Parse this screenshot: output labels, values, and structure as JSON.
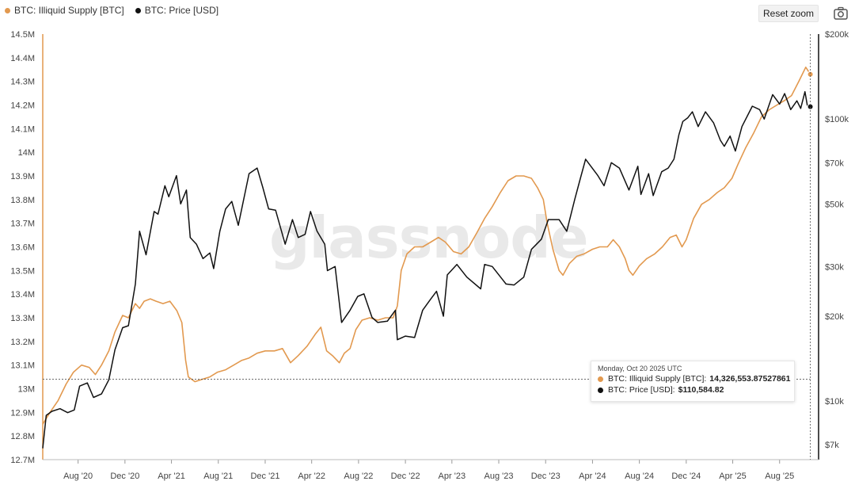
{
  "legend": {
    "items": [
      {
        "label": "BTC: Illiquid Supply [BTC]",
        "color": "#e2994f"
      },
      {
        "label": "BTC: Price [USD]",
        "color": "#111111"
      }
    ]
  },
  "toolbar": {
    "reset_zoom": "Reset zoom",
    "camera_icon": "camera-icon"
  },
  "watermark": "glassnode",
  "tooltip": {
    "date": "Monday, Oct 20 2025 UTC",
    "supply_label": "BTC: Illiquid Supply [BTC]:",
    "supply_value": "14,326,553.87527861",
    "price_label": "BTC: Price [USD]:",
    "price_value": "$110,584.82"
  },
  "chart_data": {
    "type": "line",
    "x_ticks": [
      "Aug '20",
      "Dec '20",
      "Apr '21",
      "Aug '21",
      "Dec '21",
      "Apr '22",
      "Aug '22",
      "Dec '22",
      "Apr '23",
      "Aug '23",
      "Dec '23",
      "Apr '24",
      "Aug '24",
      "Dec '24",
      "Apr '25",
      "Aug '25"
    ],
    "x_range": [
      "2020-05-01",
      "2025-10-25"
    ],
    "y_left": {
      "min": 12.7,
      "max": 14.5,
      "ticks": [
        "12.7M",
        "12.8M",
        "12.9M",
        "13M",
        "13.1M",
        "13.2M",
        "13.3M",
        "13.4M",
        "13.5M",
        "13.6M",
        "13.7M",
        "13.8M",
        "13.9M",
        "14M",
        "14.1M",
        "14.2M",
        "14.3M",
        "14.4M",
        "14.5M"
      ],
      "unit": "M BTC"
    },
    "y_right": {
      "scale": "log",
      "min": 6200,
      "max": 200000,
      "ticks": [
        {
          "label": "$200k",
          "value": 200000
        },
        {
          "label": "$100k",
          "value": 100000
        },
        {
          "label": "$70k",
          "value": 70000
        },
        {
          "label": "$50k",
          "value": 50000
        },
        {
          "label": "$30k",
          "value": 30000
        },
        {
          "label": "$20k",
          "value": 20000
        },
        {
          "label": "$10k",
          "value": 10000
        },
        {
          "label": "$7k",
          "value": 7000
        }
      ]
    },
    "crosshair": {
      "date": "2025-10-20",
      "supply": 13.04
    },
    "series": [
      {
        "name": "BTC: Illiquid Supply [BTC]",
        "axis": "left",
        "color": "#e2994f",
        "points": [
          [
            "2020-05-01",
            12.85
          ],
          [
            "2020-05-20",
            12.9
          ],
          [
            "2020-06-10",
            12.95
          ],
          [
            "2020-07-01",
            13.02
          ],
          [
            "2020-07-20",
            13.07
          ],
          [
            "2020-08-10",
            13.1
          ],
          [
            "2020-08-30",
            13.09
          ],
          [
            "2020-09-15",
            13.06
          ],
          [
            "2020-10-01",
            13.1
          ],
          [
            "2020-10-20",
            13.16
          ],
          [
            "2020-11-05",
            13.24
          ],
          [
            "2020-11-25",
            13.31
          ],
          [
            "2020-12-10",
            13.3
          ],
          [
            "2020-12-28",
            13.36
          ],
          [
            "2021-01-08",
            13.34
          ],
          [
            "2021-01-20",
            13.37
          ],
          [
            "2021-02-05",
            13.38
          ],
          [
            "2021-02-20",
            13.37
          ],
          [
            "2021-03-10",
            13.36
          ],
          [
            "2021-03-28",
            13.37
          ],
          [
            "2021-04-15",
            13.33
          ],
          [
            "2021-04-28",
            13.28
          ],
          [
            "2021-05-08",
            13.12
          ],
          [
            "2021-05-15",
            13.05
          ],
          [
            "2021-06-01",
            13.03
          ],
          [
            "2021-06-20",
            13.04
          ],
          [
            "2021-07-10",
            13.05
          ],
          [
            "2021-07-30",
            13.07
          ],
          [
            "2021-08-20",
            13.08
          ],
          [
            "2021-09-10",
            13.1
          ],
          [
            "2021-10-01",
            13.12
          ],
          [
            "2021-10-20",
            13.13
          ],
          [
            "2021-11-10",
            13.15
          ],
          [
            "2021-12-01",
            13.16
          ],
          [
            "2021-12-25",
            13.16
          ],
          [
            "2022-01-15",
            13.17
          ],
          [
            "2022-02-05",
            13.11
          ],
          [
            "2022-02-25",
            13.14
          ],
          [
            "2022-03-20",
            13.18
          ],
          [
            "2022-04-10",
            13.23
          ],
          [
            "2022-04-25",
            13.26
          ],
          [
            "2022-05-10",
            13.16
          ],
          [
            "2022-05-25",
            13.14
          ],
          [
            "2022-06-12",
            13.11
          ],
          [
            "2022-06-25",
            13.15
          ],
          [
            "2022-07-10",
            13.17
          ],
          [
            "2022-07-25",
            13.25
          ],
          [
            "2022-08-10",
            13.29
          ],
          [
            "2022-08-30",
            13.3
          ],
          [
            "2022-09-20",
            13.29
          ],
          [
            "2022-10-10",
            13.3
          ],
          [
            "2022-10-30",
            13.3
          ],
          [
            "2022-11-10",
            13.35
          ],
          [
            "2022-11-20",
            13.5
          ],
          [
            "2022-12-05",
            13.57
          ],
          [
            "2022-12-25",
            13.6
          ],
          [
            "2023-01-15",
            13.6
          ],
          [
            "2023-02-05",
            13.62
          ],
          [
            "2023-02-25",
            13.64
          ],
          [
            "2023-03-15",
            13.62
          ],
          [
            "2023-04-05",
            13.58
          ],
          [
            "2023-04-25",
            13.57
          ],
          [
            "2023-05-15",
            13.6
          ],
          [
            "2023-06-05",
            13.66
          ],
          [
            "2023-06-25",
            13.72
          ],
          [
            "2023-07-15",
            13.77
          ],
          [
            "2023-08-05",
            13.83
          ],
          [
            "2023-08-25",
            13.88
          ],
          [
            "2023-09-15",
            13.9
          ],
          [
            "2023-10-05",
            13.9
          ],
          [
            "2023-10-25",
            13.89
          ],
          [
            "2023-11-10",
            13.85
          ],
          [
            "2023-11-25",
            13.8
          ],
          [
            "2023-12-05",
            13.7
          ],
          [
            "2023-12-20",
            13.59
          ],
          [
            "2024-01-05",
            13.5
          ],
          [
            "2024-01-15",
            13.48
          ],
          [
            "2024-02-01",
            13.53
          ],
          [
            "2024-02-20",
            13.56
          ],
          [
            "2024-03-10",
            13.57
          ],
          [
            "2024-04-01",
            13.59
          ],
          [
            "2024-04-20",
            13.6
          ],
          [
            "2024-05-10",
            13.6
          ],
          [
            "2024-05-25",
            13.63
          ],
          [
            "2024-06-10",
            13.6
          ],
          [
            "2024-06-25",
            13.55
          ],
          [
            "2024-07-05",
            13.5
          ],
          [
            "2024-07-15",
            13.48
          ],
          [
            "2024-08-01",
            13.52
          ],
          [
            "2024-08-20",
            13.55
          ],
          [
            "2024-09-10",
            13.57
          ],
          [
            "2024-09-30",
            13.6
          ],
          [
            "2024-10-20",
            13.64
          ],
          [
            "2024-11-05",
            13.65
          ],
          [
            "2024-11-20",
            13.6
          ],
          [
            "2024-12-01",
            13.63
          ],
          [
            "2024-12-20",
            13.72
          ],
          [
            "2025-01-10",
            13.78
          ],
          [
            "2025-01-30",
            13.8
          ],
          [
            "2025-02-20",
            13.83
          ],
          [
            "2025-03-10",
            13.85
          ],
          [
            "2025-03-30",
            13.89
          ],
          [
            "2025-04-15",
            13.95
          ],
          [
            "2025-05-05",
            14.02
          ],
          [
            "2025-05-25",
            14.08
          ],
          [
            "2025-06-15",
            14.15
          ],
          [
            "2025-07-05",
            14.18
          ],
          [
            "2025-07-25",
            14.2
          ],
          [
            "2025-08-15",
            14.22
          ],
          [
            "2025-09-01",
            14.24
          ],
          [
            "2025-09-20",
            14.3
          ],
          [
            "2025-10-08",
            14.36
          ],
          [
            "2025-10-20",
            14.33
          ]
        ]
      },
      {
        "name": "BTC: Price [USD]",
        "axis": "right",
        "color": "#111111",
        "points": [
          [
            "2020-05-01",
            6800
          ],
          [
            "2020-05-10",
            8900
          ],
          [
            "2020-05-25",
            9200
          ],
          [
            "2020-06-15",
            9400
          ],
          [
            "2020-07-05",
            9100
          ],
          [
            "2020-07-22",
            9300
          ],
          [
            "2020-08-05",
            11300
          ],
          [
            "2020-08-25",
            11600
          ],
          [
            "2020-09-10",
            10300
          ],
          [
            "2020-10-01",
            10600
          ],
          [
            "2020-10-20",
            11900
          ],
          [
            "2020-11-05",
            15200
          ],
          [
            "2020-11-25",
            18200
          ],
          [
            "2020-12-10",
            18500
          ],
          [
            "2020-12-28",
            26000
          ],
          [
            "2021-01-08",
            40000
          ],
          [
            "2021-01-25",
            33000
          ],
          [
            "2021-02-15",
            47000
          ],
          [
            "2021-02-25",
            46000
          ],
          [
            "2021-03-15",
            58000
          ],
          [
            "2021-03-25",
            53000
          ],
          [
            "2021-04-14",
            63000
          ],
          [
            "2021-04-25",
            50000
          ],
          [
            "2021-05-10",
            56000
          ],
          [
            "2021-05-20",
            38000
          ],
          [
            "2021-06-05",
            36000
          ],
          [
            "2021-06-22",
            32000
          ],
          [
            "2021-07-10",
            33500
          ],
          [
            "2021-07-20",
            29500
          ],
          [
            "2021-08-05",
            40000
          ],
          [
            "2021-08-20",
            48000
          ],
          [
            "2021-09-05",
            51000
          ],
          [
            "2021-09-22",
            42000
          ],
          [
            "2021-10-10",
            55000
          ],
          [
            "2021-10-20",
            64000
          ],
          [
            "2021-11-10",
            67000
          ],
          [
            "2021-11-25",
            57000
          ],
          [
            "2021-12-10",
            48000
          ],
          [
            "2021-12-28",
            47500
          ],
          [
            "2022-01-22",
            36000
          ],
          [
            "2022-02-10",
            44000
          ],
          [
            "2022-02-25",
            38000
          ],
          [
            "2022-03-15",
            39000
          ],
          [
            "2022-03-29",
            47000
          ],
          [
            "2022-04-15",
            40000
          ],
          [
            "2022-05-05",
            36000
          ],
          [
            "2022-05-12",
            29000
          ],
          [
            "2022-06-01",
            30000
          ],
          [
            "2022-06-18",
            19000
          ],
          [
            "2022-07-10",
            21000
          ],
          [
            "2022-07-30",
            23500
          ],
          [
            "2022-08-15",
            24000
          ],
          [
            "2022-09-05",
            19800
          ],
          [
            "2022-09-20",
            19000
          ],
          [
            "2022-10-15",
            19200
          ],
          [
            "2022-11-05",
            21000
          ],
          [
            "2022-11-10",
            16500
          ],
          [
            "2022-12-01",
            17000
          ],
          [
            "2022-12-25",
            16800
          ],
          [
            "2023-01-15",
            21000
          ],
          [
            "2023-02-05",
            23000
          ],
          [
            "2023-02-20",
            24500
          ],
          [
            "2023-03-10",
            20000
          ],
          [
            "2023-03-20",
            28000
          ],
          [
            "2023-04-14",
            30500
          ],
          [
            "2023-05-10",
            27500
          ],
          [
            "2023-06-15",
            25000
          ],
          [
            "2023-06-25",
            30500
          ],
          [
            "2023-07-15",
            30000
          ],
          [
            "2023-08-20",
            26000
          ],
          [
            "2023-09-10",
            25800
          ],
          [
            "2023-10-05",
            27500
          ],
          [
            "2023-10-25",
            34500
          ],
          [
            "2023-11-20",
            37500
          ],
          [
            "2023-12-08",
            44000
          ],
          [
            "2024-01-05",
            44000
          ],
          [
            "2024-01-25",
            40000
          ],
          [
            "2024-02-15",
            52000
          ],
          [
            "2024-03-01",
            62000
          ],
          [
            "2024-03-14",
            72000
          ],
          [
            "2024-04-15",
            63000
          ],
          [
            "2024-05-01",
            58000
          ],
          [
            "2024-05-20",
            70000
          ],
          [
            "2024-06-10",
            67000
          ],
          [
            "2024-07-05",
            56000
          ],
          [
            "2024-07-28",
            68000
          ],
          [
            "2024-08-05",
            54000
          ],
          [
            "2024-08-25",
            64000
          ],
          [
            "2024-09-06",
            53500
          ],
          [
            "2024-09-28",
            65000
          ],
          [
            "2024-10-15",
            67000
          ],
          [
            "2024-10-30",
            72000
          ],
          [
            "2024-11-12",
            88000
          ],
          [
            "2024-11-22",
            98000
          ],
          [
            "2024-12-05",
            101000
          ],
          [
            "2024-12-17",
            106000
          ],
          [
            "2025-01-01",
            94000
          ],
          [
            "2025-01-20",
            106000
          ],
          [
            "2025-02-10",
            97000
          ],
          [
            "2025-02-28",
            84000
          ],
          [
            "2025-03-10",
            80000
          ],
          [
            "2025-03-25",
            87000
          ],
          [
            "2025-04-08",
            77000
          ],
          [
            "2025-04-25",
            94000
          ],
          [
            "2025-05-22",
            111000
          ],
          [
            "2025-06-10",
            108000
          ],
          [
            "2025-06-22",
            100000
          ],
          [
            "2025-07-14",
            122000
          ],
          [
            "2025-08-01",
            113000
          ],
          [
            "2025-08-14",
            123000
          ],
          [
            "2025-08-30",
            108000
          ],
          [
            "2025-09-15",
            116000
          ],
          [
            "2025-09-25",
            109000
          ],
          [
            "2025-10-06",
            125000
          ],
          [
            "2025-10-12",
            112000
          ],
          [
            "2025-10-20",
            110584.82
          ]
        ]
      }
    ]
  }
}
